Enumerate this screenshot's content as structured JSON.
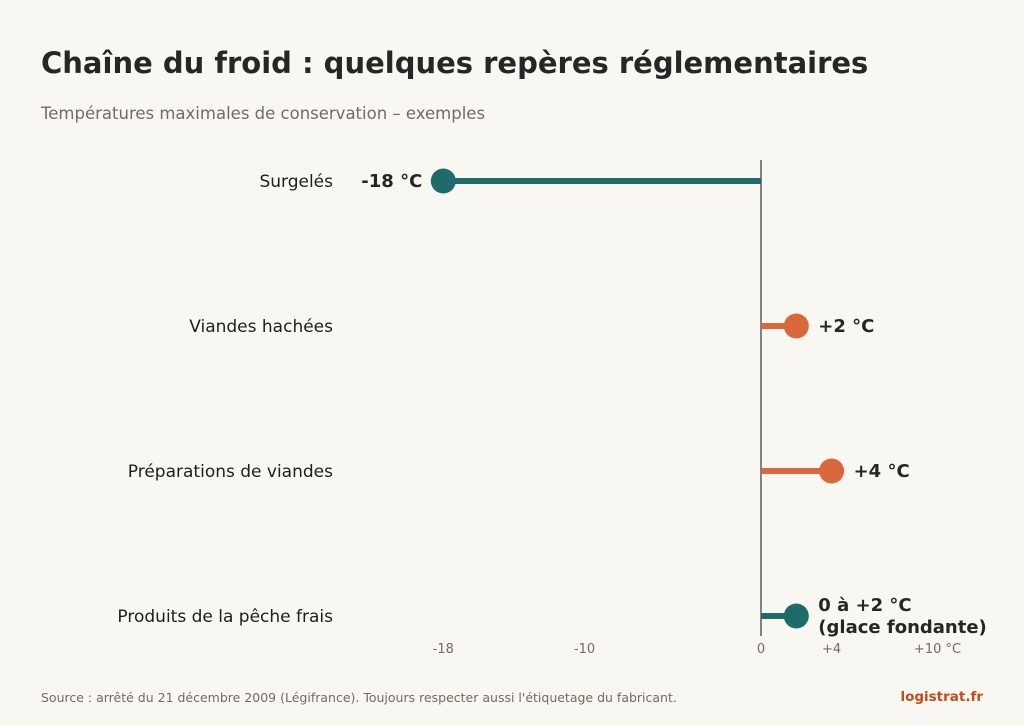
{
  "title": "Chaîne du froid : quelques repères réglementaires",
  "subtitle": "Températures maximales de conservation – exemples",
  "footer": {
    "source": "Source : arrêté du 21 décembre 2009 (Légifrance). Toujours respecter aussi l'étiquetage du fabricant.",
    "brand": "logistrat.fr"
  },
  "colors": {
    "teal": "#1f6b6b",
    "orange": "#d9683c",
    "text": "#262626",
    "muted": "#736a64",
    "brand": "#c24b1c"
  },
  "chart_data": {
    "type": "lollipop",
    "xlim": [
      -22,
      12
    ],
    "baseline": 0,
    "x_ticks": [
      {
        "value": -18,
        "label": "-18"
      },
      {
        "value": -10,
        "label": "-10"
      },
      {
        "value": 0,
        "label": "0"
      },
      {
        "value": 4,
        "label": "+4"
      },
      {
        "value": 10,
        "label": "+10 °C"
      }
    ],
    "categories": [
      {
        "label": "Surgelés",
        "value": -18,
        "value_label": [
          "-18 °C"
        ],
        "color": "teal"
      },
      {
        "label": "Viandes hachées",
        "value": 2,
        "value_label": [
          "+2 °C"
        ],
        "color": "orange"
      },
      {
        "label": "Préparations de viandes",
        "value": 4,
        "value_label": [
          "+4 °C"
        ],
        "color": "orange"
      },
      {
        "label": "Produits de la pêche frais",
        "value": 2,
        "value_label": [
          "0 à +2 °C",
          "(glace fondante)"
        ],
        "color": "teal"
      }
    ]
  }
}
